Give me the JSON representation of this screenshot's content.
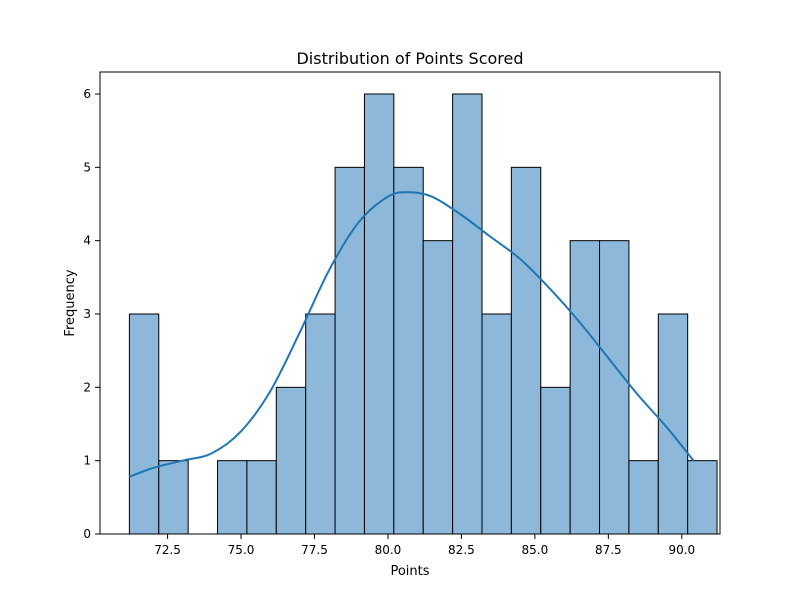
{
  "chart_data": {
    "type": "bar",
    "title": "Distribution of Points Scored",
    "xlabel": "Points",
    "ylabel": "Frequency",
    "xlim": [
      70.2,
      91.3
    ],
    "ylim": [
      0,
      6.3
    ],
    "x_ticks": [
      72.5,
      75.0,
      77.5,
      80.0,
      82.5,
      85.0,
      87.5,
      90.0
    ],
    "y_ticks": [
      0,
      1,
      2,
      3,
      4,
      5,
      6
    ],
    "bins": [
      {
        "x0": 71.2,
        "x1": 72.2,
        "count": 3
      },
      {
        "x0": 72.2,
        "x1": 73.2,
        "count": 1
      },
      {
        "x0": 73.2,
        "x1": 74.2,
        "count": 0
      },
      {
        "x0": 74.2,
        "x1": 75.2,
        "count": 1
      },
      {
        "x0": 75.2,
        "x1": 76.2,
        "count": 1
      },
      {
        "x0": 76.2,
        "x1": 77.2,
        "count": 2
      },
      {
        "x0": 77.2,
        "x1": 78.2,
        "count": 3
      },
      {
        "x0": 78.2,
        "x1": 79.2,
        "count": 5
      },
      {
        "x0": 79.2,
        "x1": 80.2,
        "count": 6
      },
      {
        "x0": 80.2,
        "x1": 81.2,
        "count": 5
      },
      {
        "x0": 81.2,
        "x1": 82.2,
        "count": 4
      },
      {
        "x0": 82.2,
        "x1": 83.2,
        "count": 6
      },
      {
        "x0": 83.2,
        "x1": 84.2,
        "count": 3
      },
      {
        "x0": 84.2,
        "x1": 85.2,
        "count": 5
      },
      {
        "x0": 85.2,
        "x1": 86.2,
        "count": 2
      },
      {
        "x0": 86.2,
        "x1": 87.2,
        "count": 4
      },
      {
        "x0": 87.2,
        "x1": 88.2,
        "count": 4
      },
      {
        "x0": 88.2,
        "x1": 89.2,
        "count": 1
      },
      {
        "x0": 89.2,
        "x1": 90.2,
        "count": 3
      },
      {
        "x0": 90.2,
        "x1": 91.2,
        "count": 1
      }
    ],
    "kde": {
      "x": [
        71.2,
        72.0,
        73.0,
        74.0,
        75.0,
        76.0,
        77.0,
        78.0,
        79.0,
        80.0,
        80.7,
        81.5,
        82.5,
        83.5,
        84.5,
        85.5,
        86.5,
        87.5,
        88.5,
        89.5,
        90.4
      ],
      "y": [
        0.78,
        0.9,
        1.0,
        1.1,
        1.4,
        1.95,
        2.75,
        3.6,
        4.25,
        4.6,
        4.66,
        4.6,
        4.35,
        4.05,
        3.75,
        3.35,
        2.9,
        2.4,
        1.9,
        1.45,
        1.0
      ]
    },
    "bar_color": "#8db8d9",
    "bar_edge_color": "#000000",
    "kde_color": "#1f77b4",
    "grid": false,
    "legend": "none"
  }
}
